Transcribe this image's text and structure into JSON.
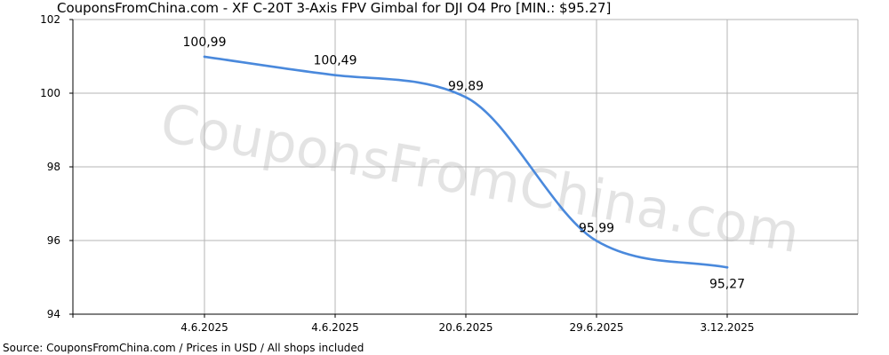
{
  "title": "CouponsFromChina.com - XF C-20T 3-Axis FPV Gimbal for DJI O4 Pro [MIN.: $95.27]",
  "source": "Source: CouponsFromChina.com / Prices in USD / All shops included",
  "watermark": "CouponsFromChina.com",
  "colors": {
    "line": "#4a89dc",
    "grid": "#b4b4b4",
    "axis": "#000000"
  },
  "chart_data": {
    "type": "line",
    "title": "CouponsFromChina.com - XF C-20T 3-Axis FPV Gimbal for DJI O4 Pro [MIN.: $95.27]",
    "xlabel": "",
    "ylabel": "",
    "categories": [
      "4.6.2025",
      "4.6.2025",
      "20.6.2025",
      "29.6.2025",
      "3.12.2025"
    ],
    "series": [
      {
        "values": [
          100.99,
          100.49,
          99.89,
          95.99,
          95.27
        ],
        "labels": [
          "100,99",
          "100,49",
          "99,89",
          "95,99",
          "95,27"
        ]
      }
    ],
    "ylim": [
      94,
      102
    ],
    "yticks": [
      "94",
      "96",
      "98",
      "100",
      "102"
    ],
    "grid": true,
    "legend": "none"
  }
}
